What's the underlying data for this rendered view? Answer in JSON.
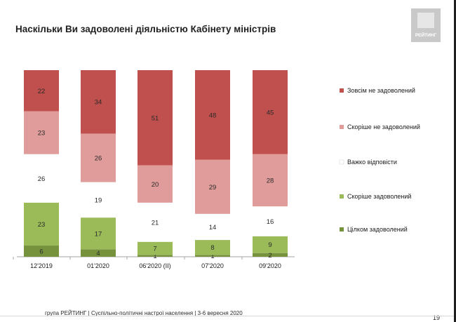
{
  "slide": {
    "title": "Наскільки Ви задоволені діяльністю Кабінету міністрів",
    "logo_text": "РЕЙТИНГ",
    "footer": "група РЕЙТИНГ | Суспільно-політичні настрої населення | 3-6 вересня 2020",
    "page_number": "19"
  },
  "colors": {
    "Зовсім не задоволений": "#c0504d",
    "Скоріше не задоволений": "#df9c9a",
    "Важко відповісти": "#ffffff",
    "Скоріше задоволений": "#9bbb59",
    "Цілком задоволений": "#76923c"
  },
  "chart_data": {
    "type": "bar",
    "stacked": true,
    "categories": [
      "12'2019",
      "01'2020",
      "06'2020 (II)",
      "07'2020",
      "09'2020"
    ],
    "series": [
      {
        "name": "Цілком задоволений",
        "values": [
          6,
          4,
          1,
          1,
          2
        ]
      },
      {
        "name": "Скоріше задоволений",
        "values": [
          23,
          17,
          7,
          8,
          9
        ]
      },
      {
        "name": "Важко відповісти",
        "values": [
          26,
          19,
          21,
          14,
          16
        ]
      },
      {
        "name": "Скоріше не задоволений",
        "values": [
          23,
          26,
          20,
          29,
          28
        ]
      },
      {
        "name": "Зовсім не задоволений",
        "values": [
          22,
          34,
          51,
          48,
          45
        ]
      }
    ],
    "legend_order": [
      "Зовсім не задоволений",
      "Скоріше не задоволений",
      "Важко відповісти",
      "Скоріше задоволений",
      "Цілком задоволений"
    ],
    "legend_position": "right",
    "ylim": [
      0,
      100
    ],
    "grid": false
  }
}
